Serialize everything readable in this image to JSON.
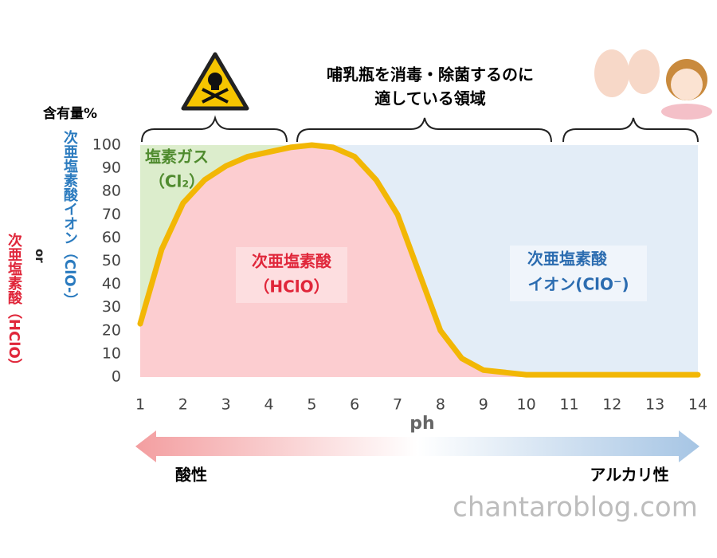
{
  "chart_data": {
    "type": "area",
    "y_label_top": "含有量%",
    "y_label_blue": "次亜塩素酸イオン（ClO-）",
    "y_label_or": "or",
    "y_label_red": "次亜塩素酸（HClO）",
    "x_label": "ph",
    "annotation": [
      "哺乳瓶を消毒・除菌するのに",
      "適している領域"
    ],
    "x": [
      1,
      1.5,
      2,
      2.5,
      3,
      3.5,
      4,
      4.5,
      5,
      5.5,
      6,
      6.5,
      7,
      7.5,
      8,
      8.5,
      9,
      10,
      11,
      12,
      13,
      14
    ],
    "series": [
      {
        "name": "次亜塩素酸",
        "color": "#f2b705",
        "fill": "#fccdd0",
        "values": [
          23,
          55,
          75,
          85,
          91,
          95,
          97,
          99,
          100,
          99,
          95,
          85,
          70,
          45,
          20,
          8,
          3,
          1,
          1,
          1,
          1,
          1
        ]
      }
    ],
    "regions": [
      {
        "label": [
          "塩素ガス",
          "（Cl₂）"
        ],
        "xlim": [
          1,
          4.6
        ],
        "color": "#dcedcc",
        "text_color": "#4f8b2e"
      },
      {
        "label": [
          "次亜塩素酸",
          "イオン(ClO⁻)"
        ],
        "xlim": [
          4.6,
          14
        ],
        "color": "#e3edf7",
        "text_color": "#2b6cb0"
      }
    ],
    "series_label": "（HClO）",
    "xlim": [
      1,
      14
    ],
    "xticks": [
      1,
      2,
      3,
      4,
      5,
      6,
      7,
      8,
      9,
      10,
      11,
      12,
      13,
      14
    ],
    "ylim": [
      0,
      100
    ],
    "yticks": [
      0,
      10,
      20,
      30,
      40,
      50,
      60,
      70,
      80,
      90,
      100
    ],
    "arrow_labels": [
      "酸性",
      "アルカリ性"
    ],
    "watermark": "chantaroblog.com"
  }
}
